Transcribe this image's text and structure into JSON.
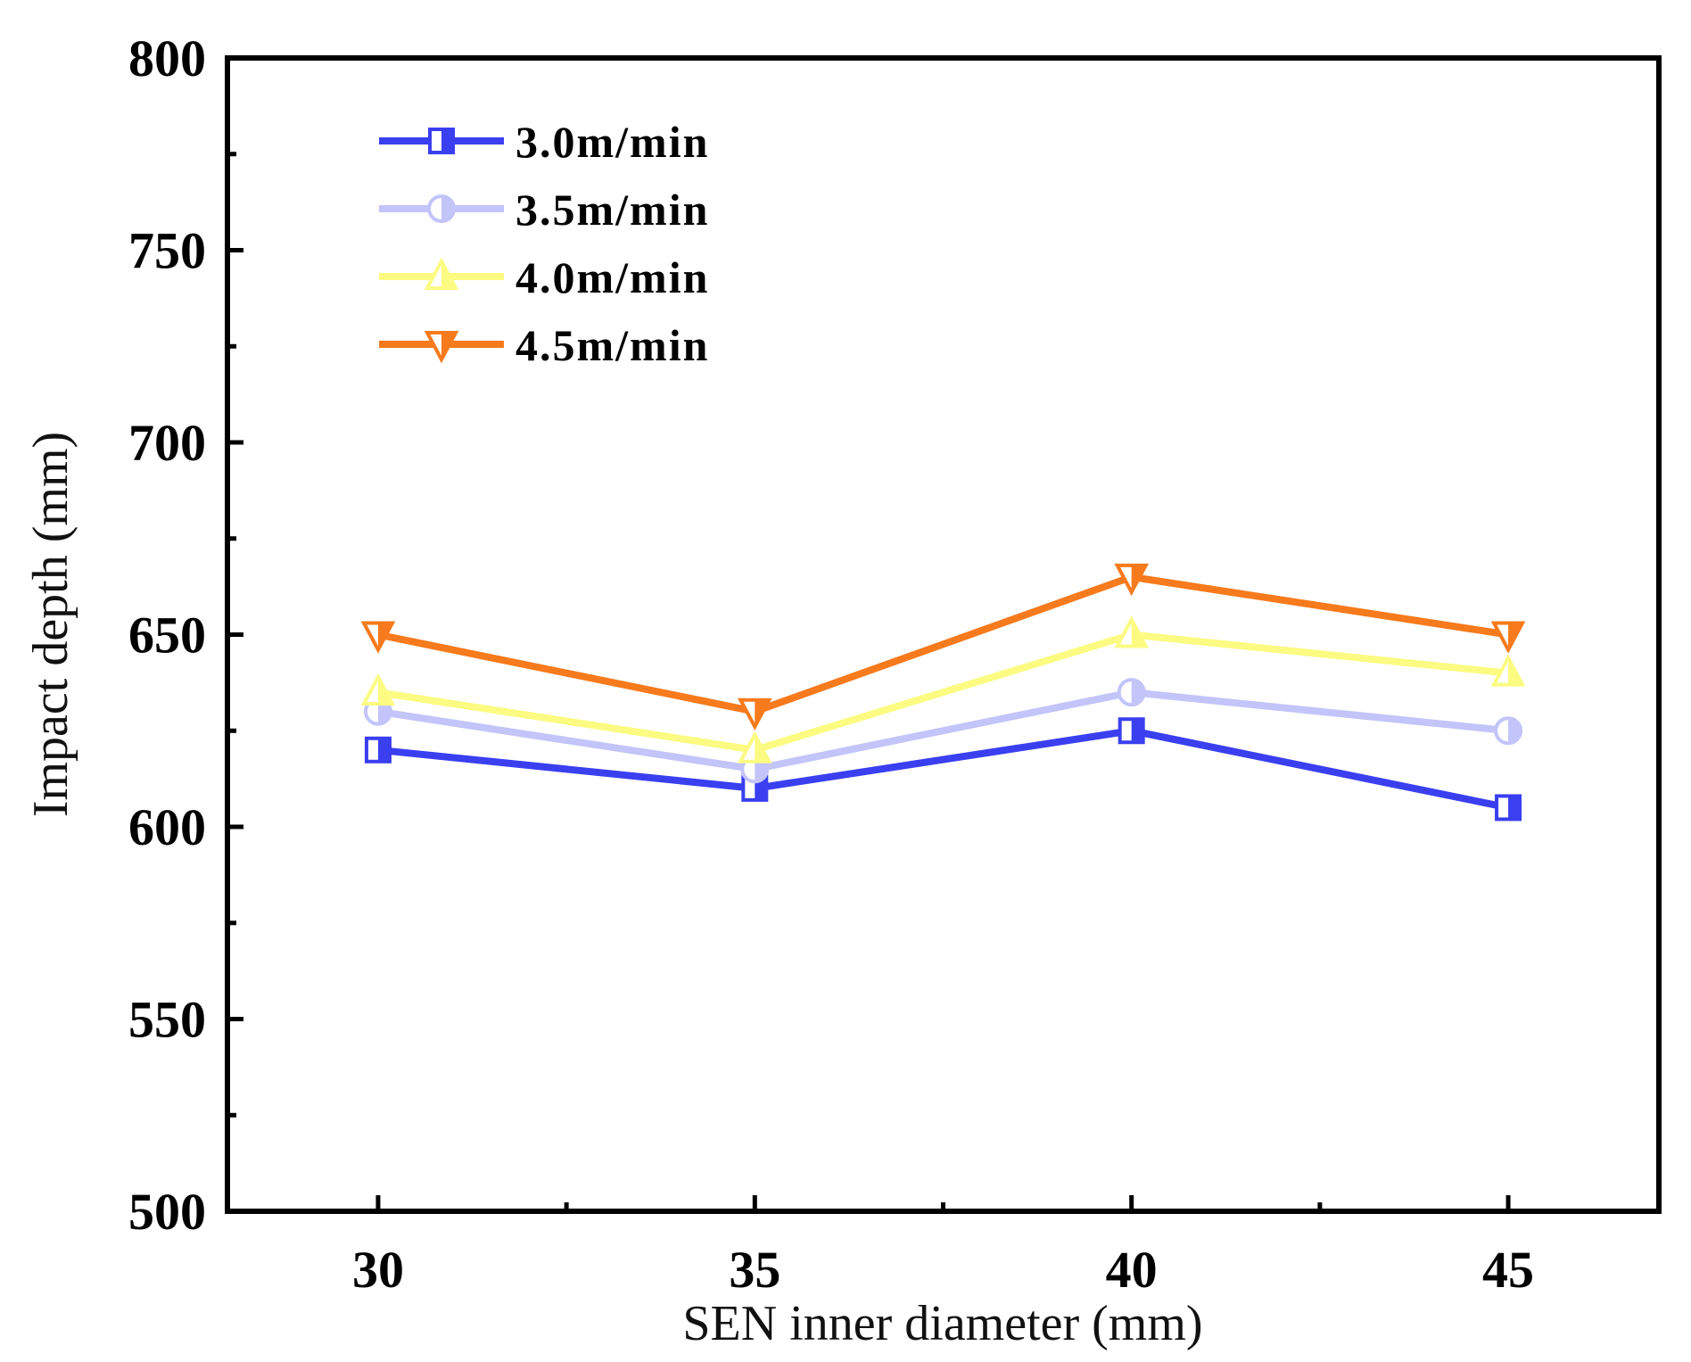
{
  "chart_data": {
    "type": "line",
    "title": "",
    "xlabel": "SEN inner diameter (mm)",
    "ylabel": "Impact depth (mm)",
    "x": [
      30,
      35,
      40,
      45
    ],
    "x_ticks": [
      "30",
      "35",
      "40",
      "45"
    ],
    "xlim": [
      28,
      47
    ],
    "ylim": [
      500,
      800
    ],
    "y_ticks": [
      500,
      550,
      600,
      650,
      700,
      750,
      800
    ],
    "y_tick_labels": [
      "500",
      "550",
      "600",
      "650",
      "700",
      "750",
      "800"
    ],
    "grid": false,
    "legend_position": "top-left",
    "series": [
      {
        "name": "3.0m/min",
        "color": "#3a3ff0",
        "marker": "square-half",
        "values": [
          620,
          610,
          625,
          605
        ]
      },
      {
        "name": "3.5m/min",
        "color": "#c2c4fa",
        "marker": "circle-half",
        "values": [
          630,
          615,
          635,
          625
        ]
      },
      {
        "name": "4.0m/min",
        "color": "#fbfb82",
        "marker": "triangle-up-half",
        "values": [
          635,
          620,
          650,
          640
        ]
      },
      {
        "name": "4.5m/min",
        "color": "#f77a1c",
        "marker": "triangle-down-half",
        "values": [
          650,
          630,
          665,
          650
        ]
      }
    ]
  }
}
